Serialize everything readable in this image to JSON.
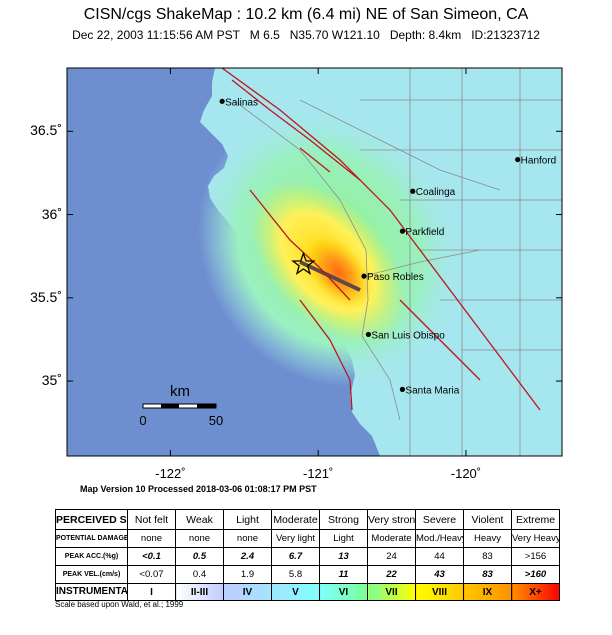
{
  "header": {
    "title": "CISN/cgs ShakeMap : 10.2 km (6.4 mi) NE of San Simeon, CA",
    "subtitle": "Dec 22, 2003 11:15:56 AM PST   M 6.5   N35.70 W121.10   Depth: 8.4km   ID:21323712"
  },
  "map": {
    "lon_range": [
      -122.7,
      -119.35
    ],
    "lat_range": [
      34.55,
      36.88
    ],
    "y_ticks": [
      {
        "value": 36.5,
        "label": "36.5˚"
      },
      {
        "value": 36.0,
        "label": "36˚"
      },
      {
        "value": 35.5,
        "label": "35.5˚"
      },
      {
        "value": 35.0,
        "label": "35˚"
      }
    ],
    "x_ticks": [
      {
        "value": -122,
        "label": "-122˚"
      },
      {
        "value": -121,
        "label": "-121˚"
      },
      {
        "value": -120,
        "label": "-120˚"
      }
    ],
    "epicenter": {
      "lon": -121.1,
      "lat": 35.7
    },
    "cities": [
      {
        "name": "Salinas",
        "lon": -121.65,
        "lat": 36.68
      },
      {
        "name": "Hanford",
        "lon": -119.65,
        "lat": 36.33
      },
      {
        "name": "Coalinga",
        "lon": -120.36,
        "lat": 36.14
      },
      {
        "name": "Parkfield",
        "lon": -120.43,
        "lat": 35.9
      },
      {
        "name": "Paso Robles",
        "lon": -120.69,
        "lat": 35.63
      },
      {
        "name": "San Luis Obispo",
        "lon": -120.66,
        "lat": 35.28
      },
      {
        "name": "Santa Maria",
        "lon": -120.43,
        "lat": 34.95
      }
    ],
    "scale_bar": {
      "title": "km",
      "start_label": "0",
      "end_label": "50"
    },
    "colors": {
      "ocean": "#6d8fd0",
      "low": "#9fe6ef",
      "mid": "#7cf29f",
      "high": "#ffd400",
      "max": "#ff7d1a",
      "faults": "#c0141c",
      "roads": "#8c8c8c"
    }
  },
  "version_line": "Map Version 10 Processed 2018-03-06 01:08:17 PM PST",
  "legend": {
    "perceived_header": "PERCEIVED SHAKING",
    "perceived": [
      "Not felt",
      "Weak",
      "Light",
      "Moderate",
      "Strong",
      "Very strong",
      "Severe",
      "Violent",
      "Extreme"
    ],
    "damage_header": "POTENTIAL DAMAGE",
    "damage": [
      "none",
      "none",
      "none",
      "Very light",
      "Light",
      "Moderate",
      "Mod./Heavy",
      "Heavy",
      "Very Heavy"
    ],
    "acc_header": "PEAK ACC.(%g)",
    "acc": [
      "<0.1",
      "0.5",
      "2.4",
      "6.7",
      "13",
      "24",
      "44",
      "83",
      ">156"
    ],
    "vel_header": "PEAK VEL.(cm/s)",
    "vel": [
      "<0.07",
      "0.4",
      "1.9",
      "5.8",
      "11",
      "22",
      "43",
      "83",
      ">160"
    ],
    "mmi_header": "INSTRUMENTAL INTENSITY",
    "mmi": [
      "I",
      "II-III",
      "IV",
      "V",
      "VI",
      "VII",
      "VIII",
      "IX",
      "X+"
    ],
    "mmi_colors": [
      "#ffffff",
      "#bfccff",
      "#a0e6ff",
      "#80ffff",
      "#7aff93",
      "#ffff00",
      "#ffc800",
      "#ff9100",
      "#ff0000"
    ],
    "scale_note": "Scale based upon Wald, et al.; 1999"
  }
}
